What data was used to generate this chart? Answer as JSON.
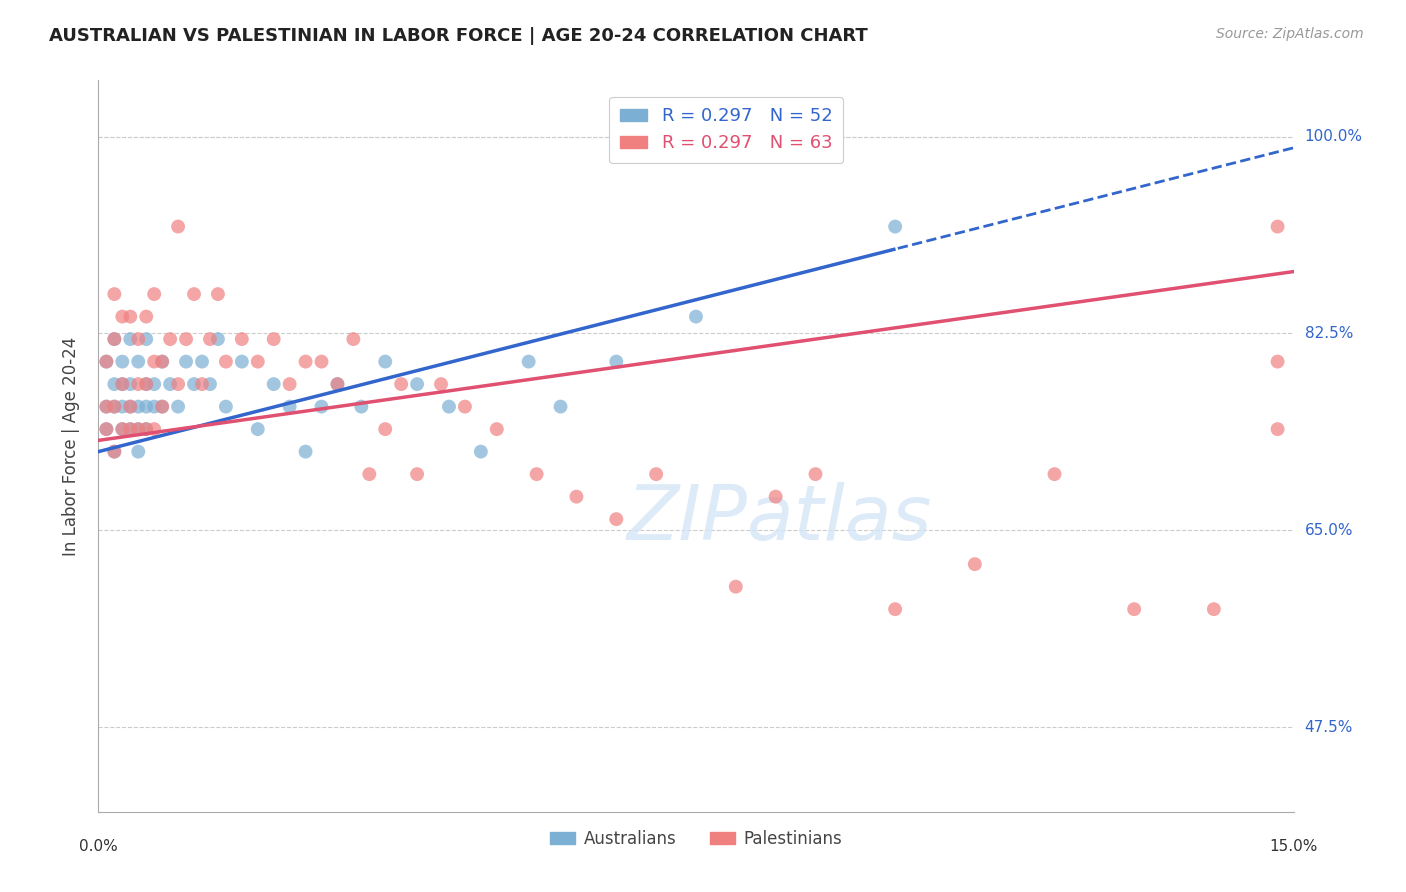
{
  "title": "AUSTRALIAN VS PALESTINIAN IN LABOR FORCE | AGE 20-24 CORRELATION CHART",
  "source": "Source: ZipAtlas.com",
  "ylabel": "In Labor Force | Age 20-24",
  "yticks_pct": [
    47.5,
    65.0,
    82.5,
    100.0
  ],
  "xmin": 0.0,
  "xmax": 0.15,
  "ymin": 0.4,
  "ymax": 1.05,
  "australian_R": 0.297,
  "australian_N": 52,
  "palestinian_R": 0.297,
  "palestinian_N": 63,
  "australian_color": "#7BAFD4",
  "palestinian_color": "#F08080",
  "australian_line_color": "#3366CC",
  "palestinian_line_color": "#E05070",
  "aus_line_solid_end": 0.1,
  "aus_line_dashed_end": 0.15,
  "australian_x": [
    0.001,
    0.001,
    0.001,
    0.002,
    0.002,
    0.002,
    0.002,
    0.003,
    0.003,
    0.003,
    0.003,
    0.004,
    0.004,
    0.004,
    0.004,
    0.005,
    0.005,
    0.005,
    0.005,
    0.006,
    0.006,
    0.006,
    0.006,
    0.007,
    0.007,
    0.008,
    0.008,
    0.009,
    0.01,
    0.011,
    0.012,
    0.013,
    0.014,
    0.015,
    0.016,
    0.018,
    0.02,
    0.022,
    0.024,
    0.026,
    0.028,
    0.03,
    0.033,
    0.036,
    0.04,
    0.044,
    0.048,
    0.054,
    0.058,
    0.065,
    0.075,
    0.1
  ],
  "australian_y": [
    0.74,
    0.76,
    0.8,
    0.72,
    0.76,
    0.78,
    0.82,
    0.74,
    0.76,
    0.78,
    0.8,
    0.74,
    0.76,
    0.78,
    0.82,
    0.72,
    0.74,
    0.76,
    0.8,
    0.74,
    0.76,
    0.78,
    0.82,
    0.76,
    0.78,
    0.76,
    0.8,
    0.78,
    0.76,
    0.8,
    0.78,
    0.8,
    0.78,
    0.82,
    0.76,
    0.8,
    0.74,
    0.78,
    0.76,
    0.72,
    0.76,
    0.78,
    0.76,
    0.8,
    0.78,
    0.76,
    0.72,
    0.8,
    0.76,
    0.8,
    0.84,
    0.92
  ],
  "palestinian_x": [
    0.001,
    0.001,
    0.001,
    0.002,
    0.002,
    0.002,
    0.002,
    0.003,
    0.003,
    0.003,
    0.004,
    0.004,
    0.004,
    0.005,
    0.005,
    0.005,
    0.006,
    0.006,
    0.006,
    0.007,
    0.007,
    0.007,
    0.008,
    0.008,
    0.009,
    0.01,
    0.01,
    0.011,
    0.012,
    0.013,
    0.014,
    0.015,
    0.016,
    0.018,
    0.02,
    0.022,
    0.024,
    0.026,
    0.028,
    0.03,
    0.032,
    0.034,
    0.036,
    0.038,
    0.04,
    0.043,
    0.046,
    0.05,
    0.055,
    0.06,
    0.065,
    0.07,
    0.08,
    0.085,
    0.09,
    0.1,
    0.11,
    0.12,
    0.13,
    0.14,
    0.148,
    0.148,
    0.148
  ],
  "palestinian_y": [
    0.74,
    0.76,
    0.8,
    0.72,
    0.76,
    0.82,
    0.86,
    0.74,
    0.78,
    0.84,
    0.74,
    0.76,
    0.84,
    0.74,
    0.78,
    0.82,
    0.74,
    0.78,
    0.84,
    0.74,
    0.8,
    0.86,
    0.76,
    0.8,
    0.82,
    0.78,
    0.92,
    0.82,
    0.86,
    0.78,
    0.82,
    0.86,
    0.8,
    0.82,
    0.8,
    0.82,
    0.78,
    0.8,
    0.8,
    0.78,
    0.82,
    0.7,
    0.74,
    0.78,
    0.7,
    0.78,
    0.76,
    0.74,
    0.7,
    0.68,
    0.66,
    0.7,
    0.6,
    0.68,
    0.7,
    0.58,
    0.62,
    0.7,
    0.58,
    0.58,
    0.74,
    0.8,
    0.92
  ]
}
